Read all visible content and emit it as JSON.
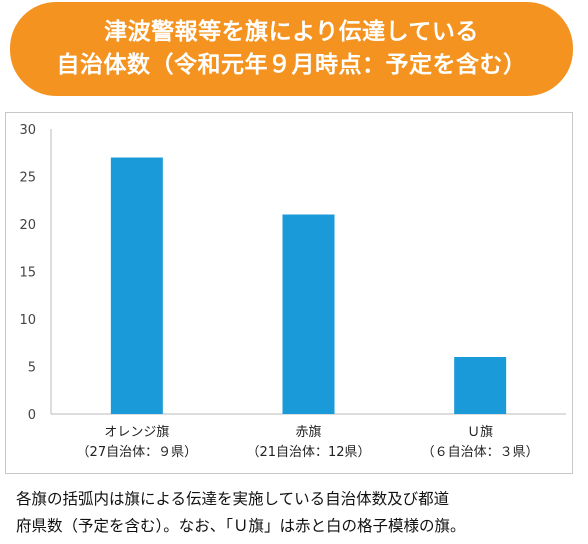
{
  "title": {
    "line1": "津波警報等を旗により伝達している",
    "line2": "自治体数（令和元年９月時点：予定を含む）"
  },
  "colors": {
    "banner": "#f4931f",
    "bar": "#1a9ad9",
    "grid": "#dddddd"
  },
  "chart_data": {
    "type": "bar",
    "categories": [
      "オレンジ旗",
      "赤旗",
      "Ｕ旗"
    ],
    "category_sublabels": [
      "（27自治体：９県）",
      "（21自治体：12県）",
      "（６自治体：３県）"
    ],
    "values": [
      27,
      21,
      6
    ],
    "ylim": [
      0,
      30
    ],
    "yticks": [
      "30",
      "25",
      "20",
      "15",
      "10",
      "5",
      "0"
    ],
    "grid": false
  },
  "footnote": {
    "line1": "各旗の括弧内は旗による伝達を実施している自治体数及び都道",
    "line2": "府県数（予定を含む）。なお、「Ｕ旗」は赤と白の格子模様の旗。"
  }
}
